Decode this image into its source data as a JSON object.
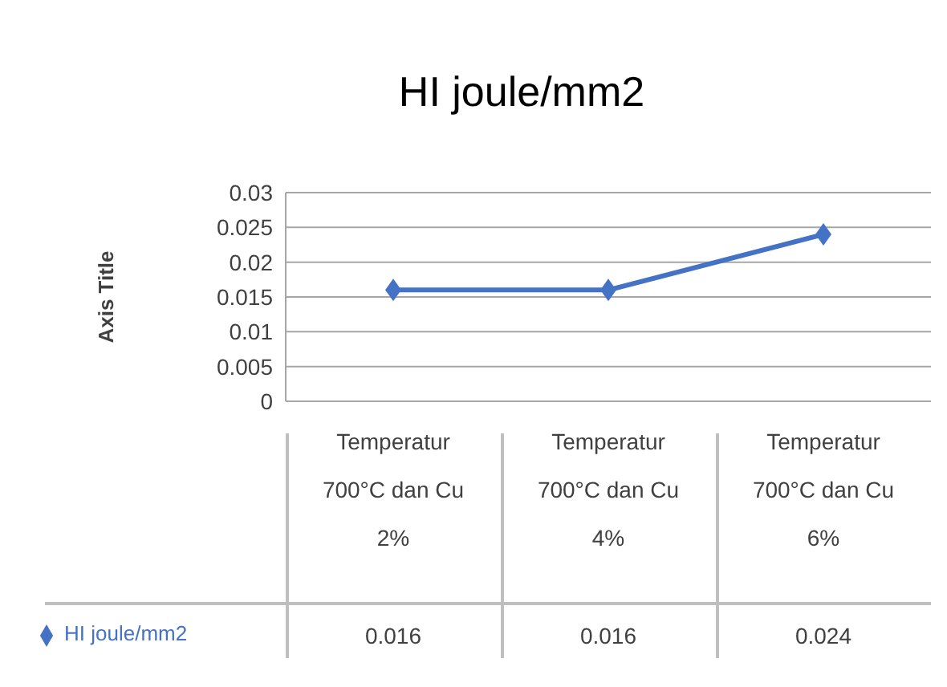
{
  "chart_data": {
    "type": "line",
    "title": "HI joule/mm2",
    "ylabel": "Axis Title",
    "categories": [
      "Temperatur 700°C dan Cu 2%",
      "Temperatur 700°C dan Cu 4%",
      "Temperatur 700°C dan Cu 6%"
    ],
    "series": [
      {
        "name": "HI joule/mm2",
        "color": "#4472c4",
        "values": [
          0.016,
          0.016,
          0.024
        ]
      }
    ],
    "ylim": [
      0,
      0.03
    ],
    "yticks": [
      0,
      0.005,
      0.01,
      0.015,
      0.02,
      0.025,
      0.03
    ],
    "grid": "y",
    "legend": "bottom",
    "marker": "diamond",
    "line_style": "solid",
    "data_labels": true
  }
}
